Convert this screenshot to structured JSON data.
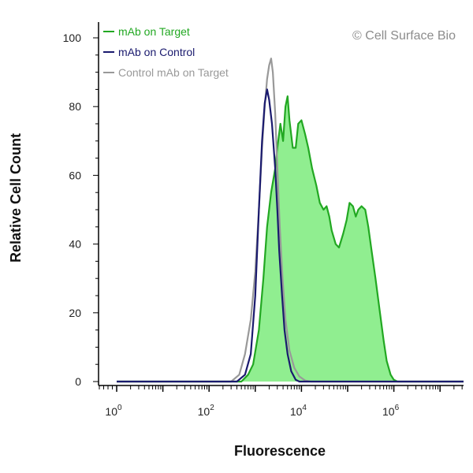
{
  "chart_data": {
    "type": "area",
    "xlabel": "Fluorescence",
    "ylabel": "Relative Cell Count",
    "x_scale": "log",
    "xlim": [
      10,
      1000000000
    ],
    "ylim": [
      0,
      100
    ],
    "x_tick_labels": [
      {
        "value": 1,
        "base": "10",
        "exp": "0"
      },
      {
        "value": 100,
        "base": "10",
        "exp": "2"
      },
      {
        "value": 10000,
        "base": "10",
        "exp": "4"
      },
      {
        "value": 1000000,
        "base": "10",
        "exp": "6"
      }
    ],
    "y_ticks": [
      0,
      20,
      40,
      60,
      80,
      100
    ],
    "legend_position": "top-left",
    "watermark": "© Cell Surface Bio",
    "series": [
      {
        "name": "mAb on Target",
        "color": "#22a822",
        "fill": "#90ee90",
        "filled": true,
        "points": [
          [
            1,
            0
          ],
          [
            500,
            0
          ],
          [
            700,
            2
          ],
          [
            900,
            5
          ],
          [
            1200,
            15
          ],
          [
            1500,
            30
          ],
          [
            1800,
            45
          ],
          [
            2200,
            55
          ],
          [
            2700,
            62
          ],
          [
            3000,
            68
          ],
          [
            3500,
            75
          ],
          [
            4000,
            70
          ],
          [
            4500,
            80
          ],
          [
            5000,
            83
          ],
          [
            5500,
            76
          ],
          [
            6500,
            68
          ],
          [
            7500,
            68
          ],
          [
            8500,
            75
          ],
          [
            10000,
            76
          ],
          [
            12000,
            72
          ],
          [
            14000,
            68
          ],
          [
            17000,
            62
          ],
          [
            21000,
            57
          ],
          [
            25000,
            52
          ],
          [
            30000,
            50
          ],
          [
            35000,
            51
          ],
          [
            40000,
            48
          ],
          [
            45000,
            44
          ],
          [
            55000,
            40
          ],
          [
            65000,
            39
          ],
          [
            80000,
            43
          ],
          [
            95000,
            47
          ],
          [
            110000,
            52
          ],
          [
            130000,
            51
          ],
          [
            150000,
            48
          ],
          [
            170000,
            50
          ],
          [
            200000,
            51
          ],
          [
            240000,
            50
          ],
          [
            280000,
            45
          ],
          [
            330000,
            38
          ],
          [
            400000,
            30
          ],
          [
            500000,
            20
          ],
          [
            600000,
            12
          ],
          [
            700000,
            6
          ],
          [
            850000,
            2
          ],
          [
            1000000,
            0.5
          ],
          [
            1200000,
            0
          ],
          [
            1000000000,
            0
          ]
        ]
      },
      {
        "name": "mAb on Control",
        "color": "#1a1a6e",
        "filled": false,
        "points": [
          [
            1,
            0
          ],
          [
            400,
            0
          ],
          [
            600,
            2
          ],
          [
            800,
            8
          ],
          [
            1000,
            25
          ],
          [
            1200,
            50
          ],
          [
            1400,
            70
          ],
          [
            1600,
            81
          ],
          [
            1800,
            85
          ],
          [
            2000,
            82
          ],
          [
            2300,
            75
          ],
          [
            2700,
            62
          ],
          [
            3000,
            50
          ],
          [
            3300,
            38
          ],
          [
            3800,
            25
          ],
          [
            4300,
            15
          ],
          [
            5000,
            8
          ],
          [
            6000,
            3
          ],
          [
            7500,
            0.5
          ],
          [
            9000,
            0
          ],
          [
            1000000000,
            0
          ]
        ]
      },
      {
        "name": "Control mAb on Target",
        "color": "#999999",
        "filled": false,
        "points": [
          [
            1,
            0
          ],
          [
            300,
            0
          ],
          [
            450,
            2
          ],
          [
            600,
            8
          ],
          [
            800,
            18
          ],
          [
            1000,
            32
          ],
          [
            1200,
            50
          ],
          [
            1400,
            68
          ],
          [
            1600,
            80
          ],
          [
            1800,
            88
          ],
          [
            2000,
            92
          ],
          [
            2200,
            94
          ],
          [
            2400,
            90
          ],
          [
            2700,
            78
          ],
          [
            3000,
            62
          ],
          [
            3400,
            45
          ],
          [
            3900,
            30
          ],
          [
            4500,
            18
          ],
          [
            5500,
            9
          ],
          [
            7000,
            4
          ],
          [
            9000,
            1.5
          ],
          [
            12000,
            0.3
          ],
          [
            16000,
            0
          ],
          [
            1000000000,
            0
          ]
        ]
      }
    ]
  }
}
